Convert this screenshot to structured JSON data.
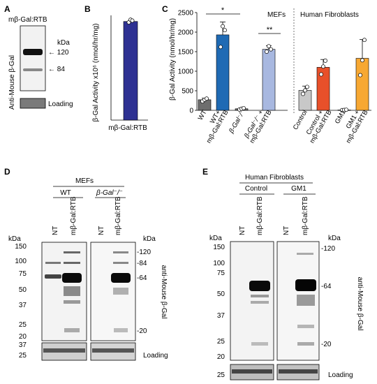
{
  "panels": {
    "A": {
      "letter": "A",
      "title": "mβ-Gal:RTB",
      "y_label": "Anti-Mouse β-Gal",
      "kda": "kDa",
      "markers": [
        "← 120",
        "← 84"
      ],
      "loading": "Loading"
    },
    "B": {
      "letter": "B",
      "y_label": "β-Gal Activity x10⁶ (nmol/hr/mg)",
      "category": "mβ-Gal:RTB"
    },
    "C": {
      "letter": "C",
      "y_label": "β-Gal Activity (nmol/hr/mg)",
      "group_mefs": "MEFs",
      "group_human": "Human Fibroblasts",
      "sig1": "*",
      "sig2": "**",
      "x_labels": [
        "WT",
        "WT+",
        "mβ-Gal:RTB",
        "β-Gal⁻/⁻",
        "β-Gal⁻/⁻ +",
        "mβ-Gal:RTB",
        "Control",
        "Control +",
        "mβ-Gal:RTB",
        "GM1",
        "GM1 +",
        "mβ-Gal:RTB"
      ]
    },
    "D": {
      "letter": "D",
      "group": "MEFs",
      "sub1": "WT",
      "sub2": "β-Gal⁻/⁻",
      "lanes": [
        "NT",
        "mβ-Gal:RTB",
        "NT",
        "mβ-Gal:RTB"
      ],
      "kda_left": "kDa",
      "kda_right": "kDa",
      "ladder": [
        "150",
        "100",
        "75",
        "50",
        "37",
        "25",
        "20"
      ],
      "markers": [
        "-120",
        "-84",
        "-64",
        "-20"
      ],
      "y_label": "anti-Mouse β-Gal",
      "loading_ladder": [
        "37",
        "25"
      ],
      "loading": "Loading"
    },
    "E": {
      "letter": "E",
      "group": "Human Fibroblasts",
      "sub1": "Control",
      "sub2": "GM1",
      "lanes": [
        "NT",
        "mβ-Gal:RTB",
        "NT",
        "mβ-Gal:RTB"
      ],
      "kda_left": "kDa",
      "kda_right": "kDa",
      "ladder": [
        "150",
        "100",
        "75",
        "50",
        "37",
        "25",
        "20"
      ],
      "markers": [
        "-120",
        "-64",
        "-20"
      ],
      "y_label": "anti-Mouse β-Gal",
      "loading_ladder": [
        "25"
      ],
      "loading": "Loading"
    }
  },
  "chart_data": [
    {
      "panel": "B",
      "type": "bar",
      "categories": [
        "mβ-Gal:RTB"
      ],
      "values": [
        1.13
      ],
      "points": [
        [
          1.12,
          1.15,
          1.14
        ]
      ],
      "ylim": [
        0,
        1.2
      ],
      "ylabel": "β-Gal Activity x10⁶ (nmol/hr/mg)",
      "colors": [
        "#2e3192"
      ]
    },
    {
      "panel": "C",
      "type": "bar",
      "categories": [
        "WT",
        "WT+ mβ-Gal:RTB",
        "β-Gal⁻/⁻",
        "β-Gal⁻/⁻ + mβ-Gal:RTB",
        "Control",
        "Control + mβ-Gal:RTB",
        "GM1",
        "GM1 + mβ-Gal:RTB"
      ],
      "values": [
        270,
        1930,
        40,
        1560,
        510,
        1100,
        10,
        1330
      ],
      "errors": [
        40,
        330,
        25,
        90,
        110,
        200,
        5,
        480
      ],
      "points": [
        [
          230,
          270,
          300
        ],
        [
          1620,
          2150,
          2050
        ],
        [
          20,
          40,
          55
        ],
        [
          1500,
          1640,
          1560
        ],
        [
          420,
          510,
          600
        ],
        [
          920,
          1120,
          1270
        ],
        [
          5,
          10,
          15
        ],
        [
          900,
          1280,
          1800
        ]
      ],
      "ylim": [
        0,
        2500
      ],
      "yticks": [
        0,
        500,
        1000,
        1500,
        2000,
        2500
      ],
      "ylabel": "β-Gal Activity (nmol/hr/mg)",
      "colors": [
        "#6e6e6e",
        "#1f6ab4",
        "#6e6e6e",
        "#a8b8e0",
        "#c8c8c8",
        "#e8502a",
        "#c8c8c8",
        "#f7a833"
      ]
    }
  ]
}
